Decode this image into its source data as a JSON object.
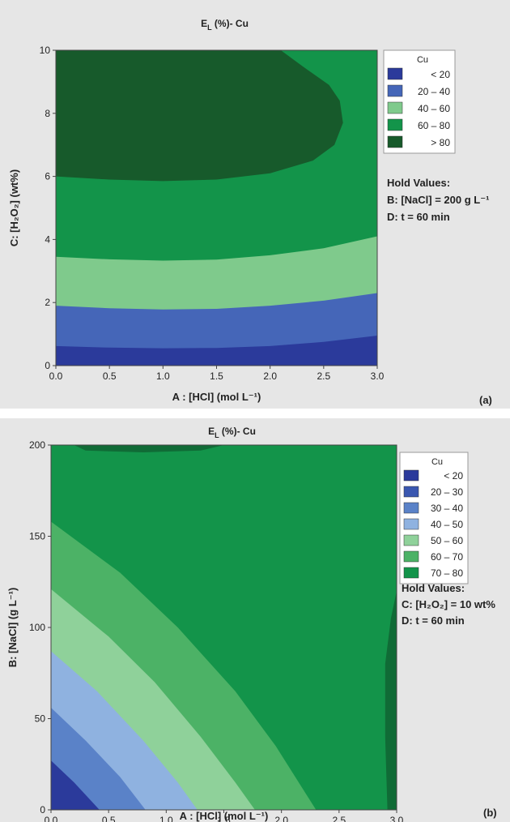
{
  "chart_data": [
    {
      "type": "contour",
      "title": "E_L (%)- Cu",
      "title_main": "E",
      "title_sub": "L",
      "title_rest": " (%)- Cu",
      "xlabel": "A : [HCl] (mol L⁻¹)",
      "ylabel": "C: [H₂O₂] (wt%)",
      "xlim": [
        0,
        3
      ],
      "ylim": [
        0,
        10
      ],
      "x_ticks": [
        "0.0",
        "0.5",
        "1.0",
        "1.5",
        "2.0",
        "2.5",
        "3.0"
      ],
      "y_ticks": [
        "0",
        "2",
        "4",
        "6",
        "8",
        "10"
      ],
      "legend_title": "Cu",
      "legend": [
        {
          "label": "<   20",
          "color": "#2b3a9b"
        },
        {
          "label": "20  –  40",
          "color": "#4566b8"
        },
        {
          "label": "40  –  60",
          "color": "#7fca8c"
        },
        {
          "label": "60  –  80",
          "color": "#13944a"
        },
        {
          "label": ">   80",
          "color": "#175a2b"
        }
      ],
      "hold_values_title": "Hold Values:",
      "hold_values": [
        "B: [NaCl] = 200 g L⁻¹",
        "D: t = 60 min"
      ],
      "panel_label": "(a)",
      "contour_boundaries": [
        {
          "level": 20,
          "points": [
            [
              0,
              0.62
            ],
            [
              0.5,
              0.57
            ],
            [
              1.0,
              0.55
            ],
            [
              1.5,
              0.56
            ],
            [
              2.0,
              0.62
            ],
            [
              2.5,
              0.75
            ],
            [
              3.0,
              0.95
            ]
          ]
        },
        {
          "level": 40,
          "points": [
            [
              0,
              1.9
            ],
            [
              0.5,
              1.82
            ],
            [
              1.0,
              1.78
            ],
            [
              1.5,
              1.8
            ],
            [
              2.0,
              1.9
            ],
            [
              2.5,
              2.06
            ],
            [
              3.0,
              2.3
            ]
          ]
        },
        {
          "level": 60,
          "points": [
            [
              0,
              3.45
            ],
            [
              0.5,
              3.37
            ],
            [
              1.0,
              3.33
            ],
            [
              1.5,
              3.36
            ],
            [
              2.0,
              3.5
            ],
            [
              2.5,
              3.72
            ],
            [
              3.0,
              4.1
            ]
          ]
        },
        {
          "level": 80,
          "points": [
            [
              0,
              6.0
            ],
            [
              0.5,
              5.9
            ],
            [
              1.0,
              5.85
            ],
            [
              1.5,
              5.9
            ],
            [
              2.0,
              6.1
            ],
            [
              2.4,
              6.5
            ],
            [
              2.6,
              7.0
            ],
            [
              2.68,
              7.7
            ],
            [
              2.65,
              8.4
            ],
            [
              2.55,
              8.9
            ],
            [
              2.3,
              9.5
            ],
            [
              2.1,
              10.0
            ]
          ]
        }
      ]
    },
    {
      "type": "contour",
      "title": "E_L (%)- Cu",
      "title_main": "E",
      "title_sub": "L",
      "title_rest": " (%)- Cu",
      "xlabel": "A : [HCl] (mol L⁻¹)",
      "ylabel": "B: [NaCl] (g L⁻¹)",
      "xlim": [
        0,
        3
      ],
      "ylim": [
        0,
        200
      ],
      "x_ticks": [
        "0.0",
        "0.5",
        "1.0",
        "1.5",
        "2.0",
        "2.5",
        "3.0"
      ],
      "y_ticks": [
        "0",
        "50",
        "100",
        "150",
        "200"
      ],
      "legend_title": "Cu",
      "legend": [
        {
          "label": "<   20",
          "color": "#2b3a9b"
        },
        {
          "label": "20  –  30",
          "color": "#3a57b0"
        },
        {
          "label": "30  –  40",
          "color": "#5a82c8"
        },
        {
          "label": "40  –  50",
          "color": "#8fb2e0"
        },
        {
          "label": "50  –  60",
          "color": "#8fd19a"
        },
        {
          "label": "60  –  70",
          "color": "#4cb266"
        },
        {
          "label": "70  –  80",
          "color": "#13944a"
        }
      ],
      "hold_values_title": "Hold Values:",
      "hold_values": [
        "C: [H₂O₂] = 10 wt%",
        "D: t = 60 min"
      ],
      "panel_label": "(b)",
      "contour_boundaries": [
        {
          "level": 20,
          "points": [
            [
              0,
              27
            ],
            [
              0.2,
              15
            ],
            [
              0.42,
              0
            ]
          ]
        },
        {
          "level": 30,
          "points": [
            [
              0,
              56
            ],
            [
              0.3,
              38
            ],
            [
              0.6,
              18
            ],
            [
              0.82,
              0
            ]
          ]
        },
        {
          "level": 40,
          "points": [
            [
              0,
              87
            ],
            [
              0.4,
              65
            ],
            [
              0.8,
              38
            ],
            [
              1.1,
              15
            ],
            [
              1.27,
              0
            ]
          ]
        },
        {
          "level": 50,
          "points": [
            [
              0,
              121
            ],
            [
              0.5,
              95
            ],
            [
              0.9,
              70
            ],
            [
              1.3,
              40
            ],
            [
              1.6,
              15
            ],
            [
              1.77,
              0
            ]
          ]
        },
        {
          "level": 60,
          "points": [
            [
              0,
              158
            ],
            [
              0.6,
              130
            ],
            [
              1.1,
              100
            ],
            [
              1.6,
              65
            ],
            [
              1.95,
              35
            ],
            [
              2.3,
              0
            ]
          ]
        },
        {
          "level": 80,
          "points": [
            [
              3.0,
              120
            ],
            [
              2.95,
              105
            ],
            [
              2.9,
              80
            ],
            [
              2.9,
              40
            ],
            [
              2.92,
              0
            ],
            [
              3.0,
              0
            ]
          ]
        },
        {
          "level": 80,
          "points": [
            [
              0.2,
              200
            ],
            [
              0.3,
              197
            ],
            [
              0.8,
              196
            ],
            [
              1.3,
              197
            ],
            [
              1.5,
              200
            ]
          ]
        }
      ]
    }
  ]
}
